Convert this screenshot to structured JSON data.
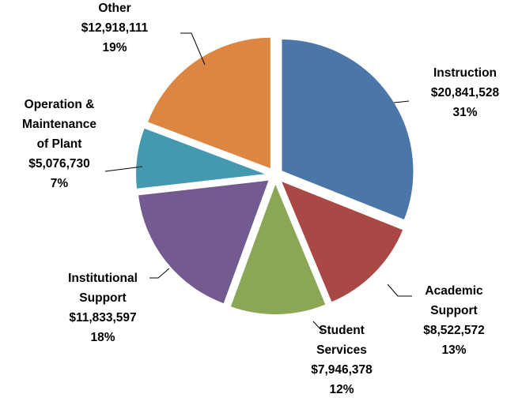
{
  "chart_data": {
    "type": "pie",
    "categories": [
      "Instruction",
      "Academic\nSupport",
      "Student\nServices",
      "Institutional\nSupport",
      "Operation &\nMaintenance\nof Plant",
      "Other"
    ],
    "values": [
      20841528,
      8522572,
      7946378,
      11833597,
      5076730,
      12918111
    ],
    "value_labels": [
      "$20,841,528",
      "$8,522,572",
      "$7,946,378",
      "$11,833,597",
      "$5,076,730",
      "$12,918,111"
    ],
    "percent_labels": [
      "31%",
      "13%",
      "12%",
      "18%",
      "7%",
      "19%"
    ],
    "colors": [
      "#4a76a8",
      "#a94845",
      "#8aa755",
      "#735a91",
      "#4499b0",
      "#dc8642"
    ]
  }
}
